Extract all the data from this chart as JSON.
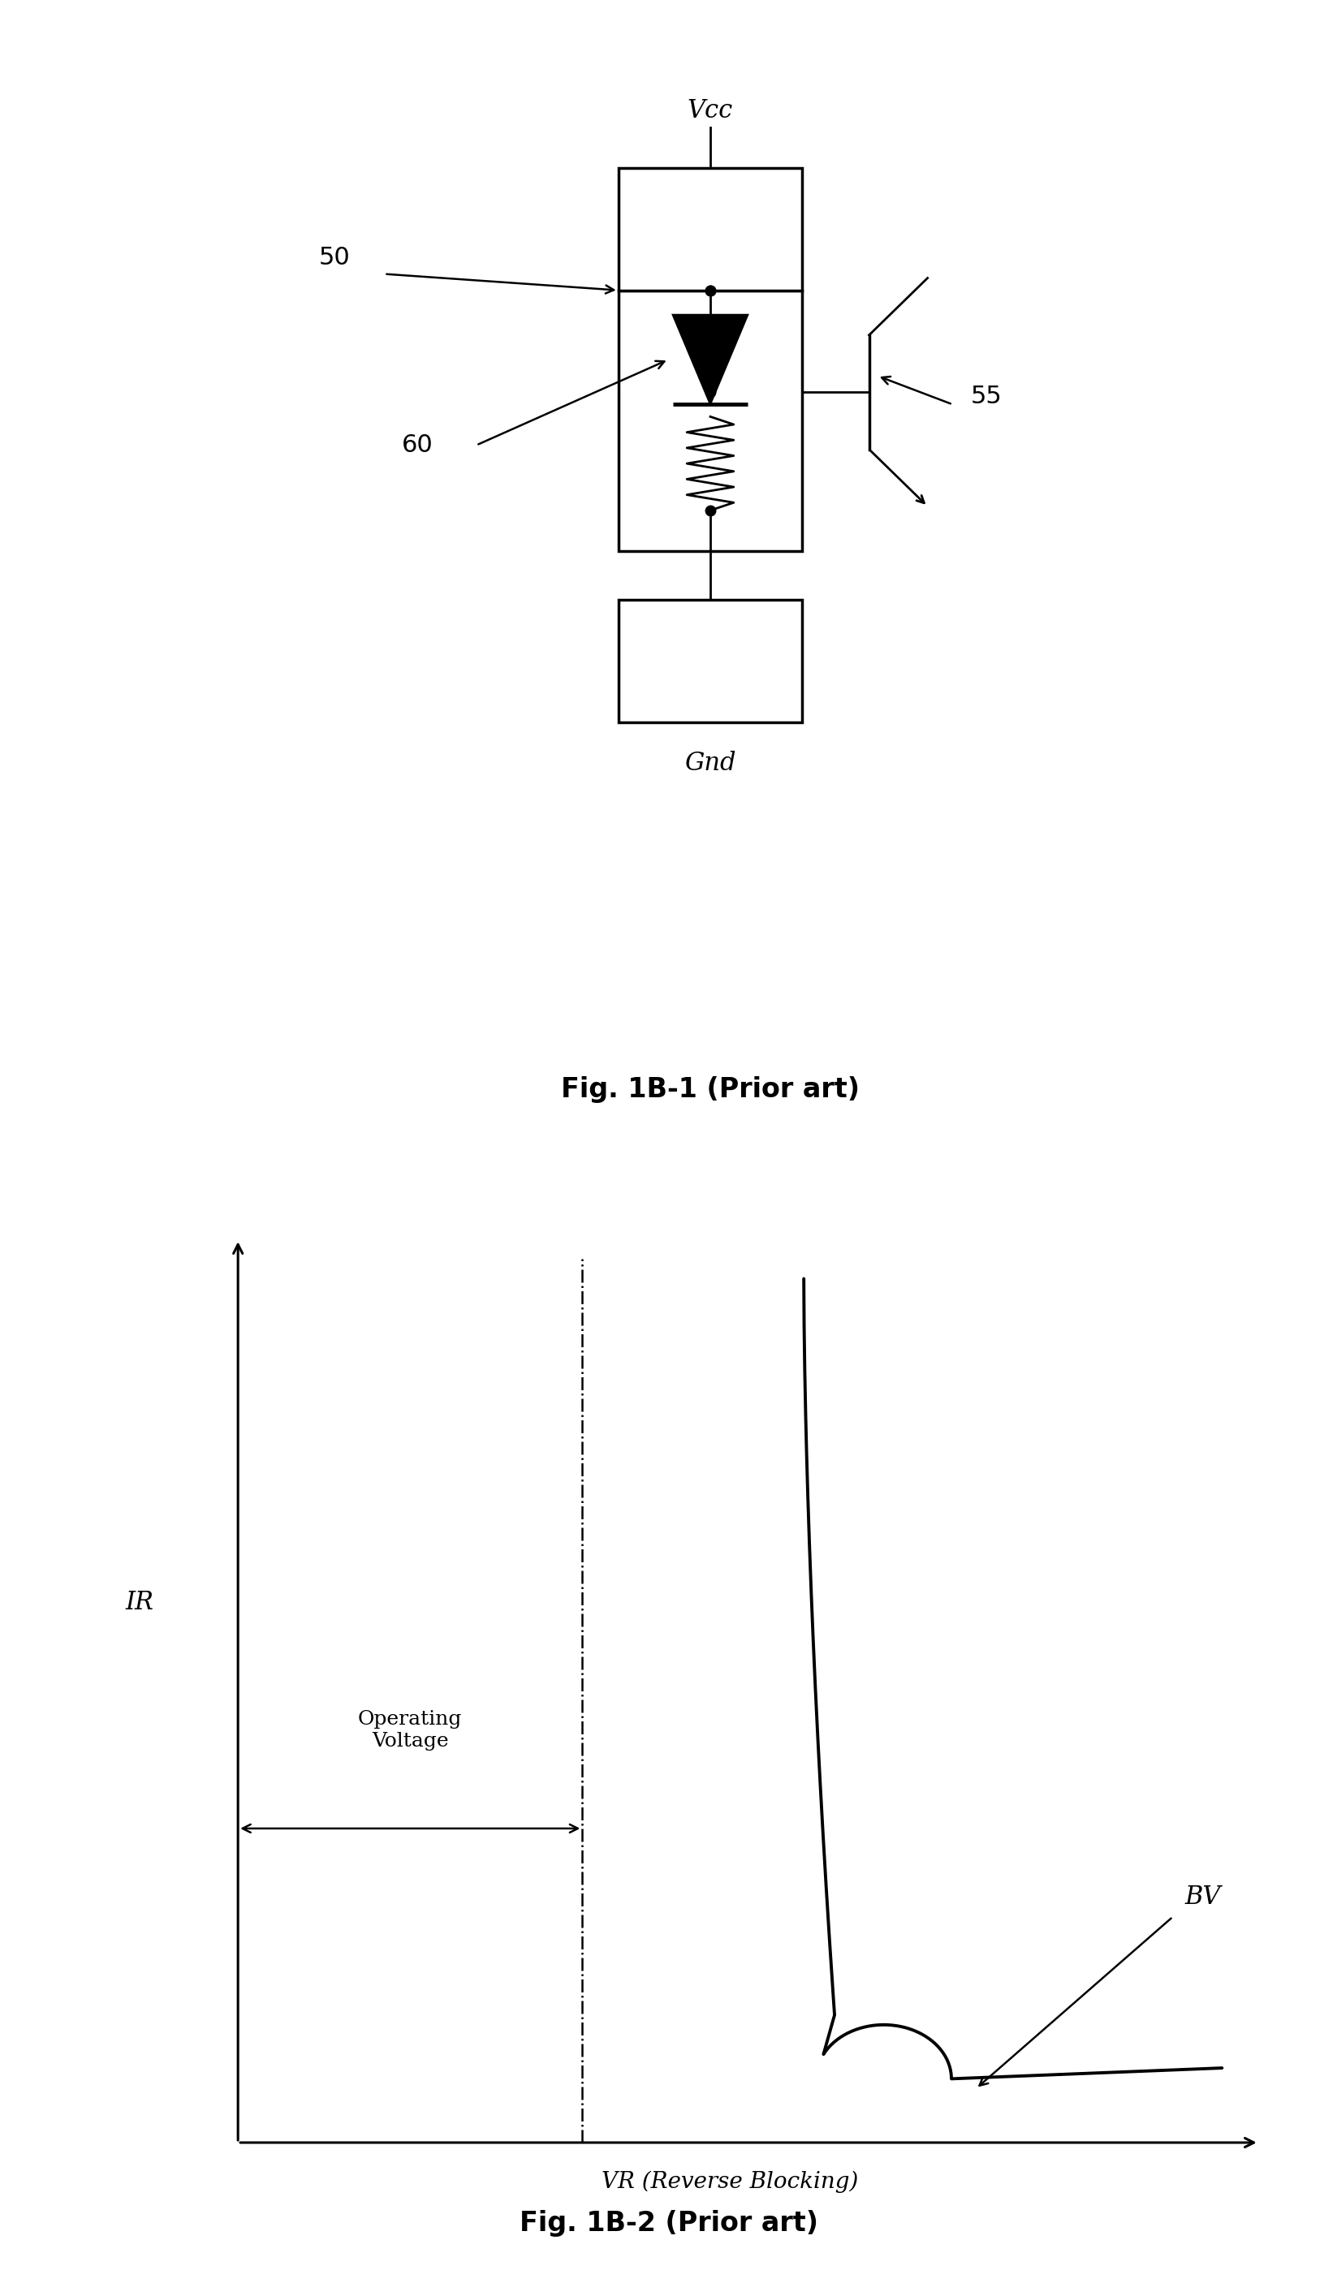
{
  "fig_width": 16.47,
  "fig_height": 28.13,
  "bg_color": "#ffffff",
  "fig1b1": {
    "title": "Fig. 1B-1 (Prior art)",
    "label_vcc": "Vcc",
    "label_gnd": "Gnd",
    "label_50": "50",
    "label_60": "60",
    "label_55": "55"
  },
  "fig1b2": {
    "title": "Fig. 1B-2 (Prior art)",
    "xlabel": "VR (Reverse Blocking)",
    "ylabel": "IR",
    "label_bv": "BV",
    "label_op_voltage": "Operating\nVoltage"
  }
}
